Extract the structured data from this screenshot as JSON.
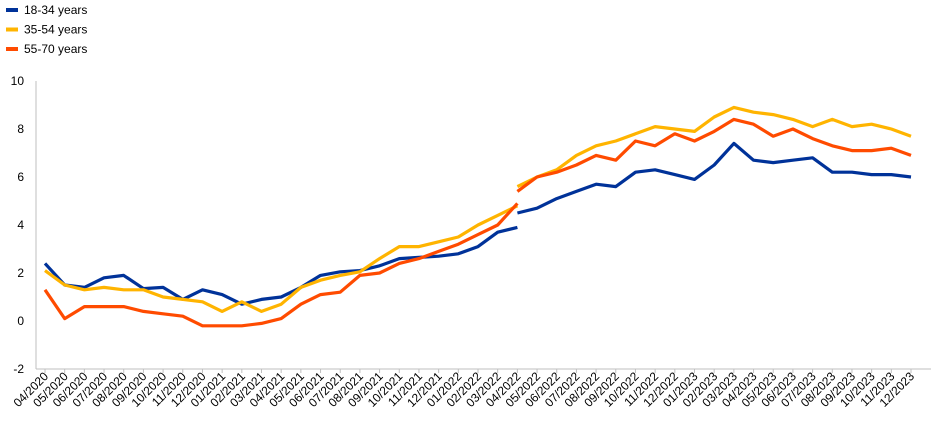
{
  "chart_data": {
    "type": "line",
    "title": "",
    "xlabel": "",
    "ylabel": "",
    "ylim": [
      -2,
      10
    ],
    "yticks": [
      -2,
      0,
      2,
      4,
      6,
      8,
      10
    ],
    "grid": false,
    "legend_position": "top-left",
    "categories": [
      "04/2020",
      "05/2020",
      "06/2020",
      "07/2020",
      "08/2020",
      "09/2020",
      "10/2020",
      "11/2020",
      "12/2020",
      "01/2021",
      "02/2021",
      "03/2021",
      "04/2021",
      "05/2021",
      "06/2021",
      "07/2021",
      "08/2021",
      "09/2021",
      "10/2021",
      "11/2021",
      "12/2021",
      "01/2022",
      "02/2022",
      "03/2022",
      "04/2022",
      "05/2022",
      "06/2022",
      "07/2022",
      "08/2022",
      "09/2022",
      "10/2022",
      "11/2022",
      "12/2022",
      "01/2023",
      "02/2023",
      "03/2023",
      "04/2023",
      "05/2023",
      "06/2023",
      "07/2023",
      "08/2023",
      "09/2023",
      "10/2023",
      "11/2023",
      "12/2023"
    ],
    "series": [
      {
        "name": "18-34 years",
        "color": "#003299",
        "segments": [
          {
            "start": 0,
            "values": [
              2.4,
              1.5,
              1.4,
              1.8,
              1.9,
              1.35,
              1.4,
              0.9,
              1.3,
              1.1,
              0.7,
              0.9,
              1.0,
              1.4,
              1.9,
              2.05,
              2.1,
              2.3,
              2.6,
              2.65,
              2.7,
              2.8,
              3.1,
              3.7,
              3.9
            ]
          },
          {
            "start": 24,
            "values": [
              4.5,
              4.7,
              5.1,
              5.4,
              5.7,
              5.6,
              6.2,
              6.3,
              6.1,
              5.9,
              6.5,
              7.4,
              6.7,
              6.6,
              6.7,
              6.8,
              6.2,
              6.2,
              6.1,
              6.1,
              6.0
            ]
          }
        ]
      },
      {
        "name": "35-54 years",
        "color": "#FFB400",
        "segments": [
          {
            "start": 0,
            "values": [
              2.1,
              1.5,
              1.3,
              1.4,
              1.3,
              1.3,
              1.0,
              0.9,
              0.8,
              0.4,
              0.8,
              0.4,
              0.7,
              1.4,
              1.7,
              1.9,
              2.05,
              2.6,
              3.1,
              3.1,
              3.3,
              3.5,
              4.0,
              4.4,
              4.8
            ]
          },
          {
            "start": 24,
            "values": [
              5.6,
              6.0,
              6.3,
              6.9,
              7.3,
              7.5,
              7.8,
              8.1,
              8.0,
              7.9,
              8.5,
              8.9,
              8.7,
              8.6,
              8.4,
              8.1,
              8.4,
              8.1,
              8.2,
              8.0,
              7.7
            ]
          }
        ]
      },
      {
        "name": "55-70 years",
        "color": "#FF4B00",
        "segments": [
          {
            "start": 0,
            "values": [
              1.3,
              0.1,
              0.6,
              0.6,
              0.6,
              0.4,
              0.3,
              0.2,
              -0.2,
              -0.2,
              -0.2,
              -0.1,
              0.1,
              0.7,
              1.1,
              1.2,
              1.9,
              2.0,
              2.4,
              2.6,
              2.9,
              3.2,
              3.6,
              4.0,
              4.9
            ]
          },
          {
            "start": 24,
            "values": [
              5.4,
              6.0,
              6.2,
              6.5,
              6.9,
              6.7,
              7.5,
              7.3,
              7.8,
              7.5,
              7.9,
              8.4,
              8.2,
              7.7,
              8.0,
              7.6,
              7.3,
              7.1,
              7.1,
              7.2,
              6.9
            ]
          }
        ]
      }
    ]
  }
}
